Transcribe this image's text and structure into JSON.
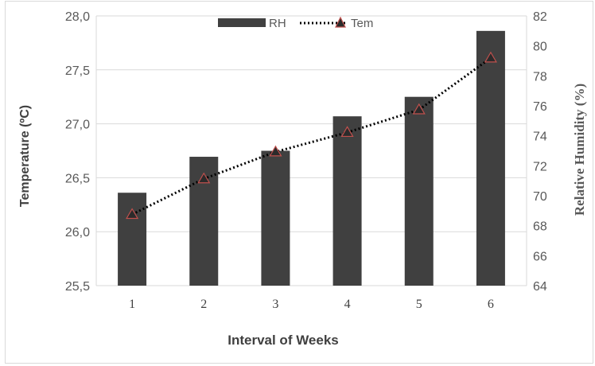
{
  "chart_data": {
    "type": "bar+line",
    "categories": [
      "1",
      "2",
      "3",
      "4",
      "5",
      "6"
    ],
    "series": [
      {
        "name": "RH",
        "type": "bar",
        "axis": "right",
        "values": [
          70.2,
          72.6,
          73.0,
          75.3,
          76.6,
          81.0
        ]
      },
      {
        "name": "Tem",
        "type": "line",
        "axis": "left",
        "values": [
          26.16,
          26.49,
          26.74,
          26.92,
          27.13,
          27.61
        ]
      }
    ],
    "xlabel": "Interval of Weeks",
    "ylabel_left": "Temperature (ºC)",
    "ylabel_right": "Relative Humidity (%)",
    "ylim_left": [
      25.5,
      28.0
    ],
    "ylim_right": [
      64,
      82
    ],
    "yticks_left": [
      "28,0",
      "27,5",
      "27,0",
      "26,5",
      "26,0",
      "25,5"
    ],
    "yticks_right": [
      "82",
      "80",
      "78",
      "76",
      "74",
      "72",
      "70",
      "68",
      "66",
      "64"
    ],
    "grid": true,
    "legend_position": "top-center",
    "colors": {
      "bar": "#404040",
      "line": "#000000",
      "marker_fill": "#2b2b2b",
      "marker_edge": "#c0504d",
      "grid": "#d9d9d9"
    }
  }
}
